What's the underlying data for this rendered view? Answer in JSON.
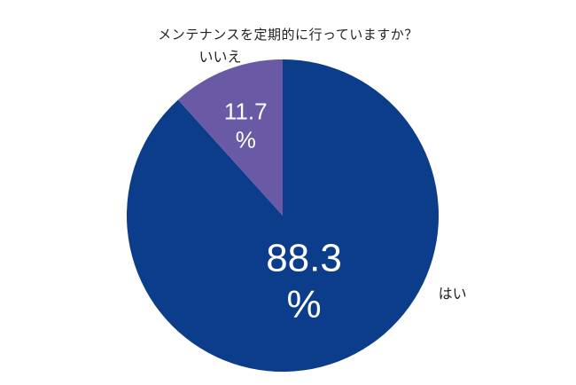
{
  "chart_data": {
    "type": "pie",
    "title": "メンテナンスを定期的に行っていますか？",
    "start_angle_deg": 0,
    "direction": "clockwise",
    "slices": [
      {
        "label": "はい",
        "value": 88.3,
        "value_text": "88.3",
        "unit": "%",
        "color": "#0b3d8a"
      },
      {
        "label": "いいえ",
        "value": 11.7,
        "value_text": "11.7",
        "unit": "%",
        "color": "#6a5aa6"
      }
    ]
  }
}
